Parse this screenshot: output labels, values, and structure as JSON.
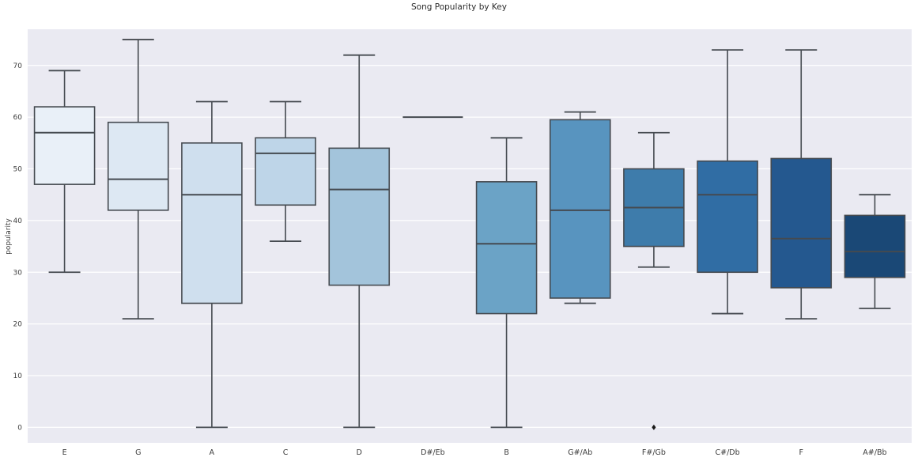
{
  "title": "Song Popularity by Key",
  "chart_data": {
    "type": "box",
    "title": "Song Popularity by Key",
    "xlabel": "",
    "ylabel": "popularity",
    "ylim": [
      -3,
      77
    ],
    "yticks": [
      0,
      10,
      20,
      30,
      40,
      50,
      60,
      70
    ],
    "grid": true,
    "legend": "none",
    "background_color": "#eaeaf2",
    "grid_color": "#ffffff",
    "line_color": "#454a50",
    "text_color": "#3d3d3d",
    "outlier_color": "#1b1b1b",
    "palette_name": "Blues",
    "categories": [
      "E",
      "G",
      "A",
      "C",
      "D",
      "D#/Eb",
      "B",
      "G#/Ab",
      "F#/Gb",
      "C#/Db",
      "F",
      "A#/Bb"
    ],
    "boxes": [
      {
        "key": "E",
        "whisker_low": 30,
        "q1": 47,
        "median": 57,
        "q3": 62,
        "whisker_high": 69,
        "outliers": [],
        "color": "#e9f0f8"
      },
      {
        "key": "G",
        "whisker_low": 21,
        "q1": 42,
        "median": 48,
        "q3": 59,
        "whisker_high": 75,
        "outliers": [],
        "color": "#dde8f3"
      },
      {
        "key": "A",
        "whisker_low": 0,
        "q1": 24,
        "median": 45,
        "q3": 55,
        "whisker_high": 63,
        "outliers": [],
        "color": "#cfdfee"
      },
      {
        "key": "C",
        "whisker_low": 36,
        "q1": 43,
        "median": 53,
        "q3": 56,
        "whisker_high": 63,
        "outliers": [],
        "color": "#bed5e8"
      },
      {
        "key": "D",
        "whisker_low": 0,
        "q1": 27.5,
        "median": 46,
        "q3": 54,
        "whisker_high": 72,
        "outliers": [],
        "color": "#a3c4db"
      },
      {
        "key": "D#/Eb",
        "whisker_low": 60,
        "q1": 60,
        "median": 60,
        "q3": 60,
        "whisker_high": 60,
        "outliers": [],
        "color": "#87b3d1"
      },
      {
        "key": "B",
        "whisker_low": 0,
        "q1": 22,
        "median": 35.5,
        "q3": 47.5,
        "whisker_high": 56,
        "outliers": [],
        "color": "#6ba3c6"
      },
      {
        "key": "G#/Ab",
        "whisker_low": 24,
        "q1": 25,
        "median": 42,
        "q3": 59.5,
        "whisker_high": 61,
        "outliers": [],
        "color": "#5894bf"
      },
      {
        "key": "F#/Gb",
        "whisker_low": 31,
        "q1": 35,
        "median": 42.5,
        "q3": 50,
        "whisker_high": 57,
        "outliers": [
          0
        ],
        "color": "#3e7cab"
      },
      {
        "key": "C#/Db",
        "whisker_low": 22,
        "q1": 30,
        "median": 45,
        "q3": 51.5,
        "whisker_high": 73,
        "outliers": [],
        "color": "#306da4"
      },
      {
        "key": "F",
        "whisker_low": 21,
        "q1": 27,
        "median": 36.5,
        "q3": 52,
        "whisker_high": 73,
        "outliers": [],
        "color": "#24588f"
      },
      {
        "key": "A#/Bb",
        "whisker_low": 23,
        "q1": 29,
        "median": 34,
        "q3": 41,
        "whisker_high": 45,
        "outliers": [],
        "color": "#1a4876"
      }
    ]
  }
}
